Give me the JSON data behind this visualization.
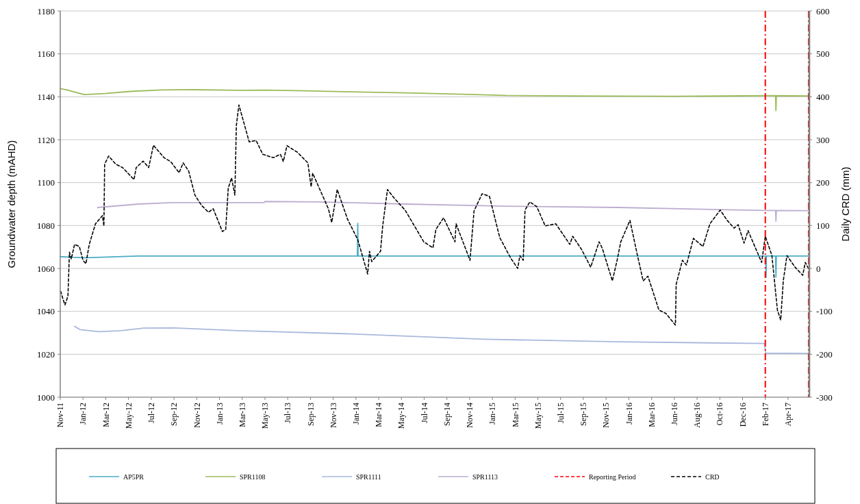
{
  "chart_data": {
    "type": "line",
    "ylabel": "Groundwater depth (mAHD)",
    "y2label": "Daily CRD (mm)",
    "xlim": [
      "2011-11-01",
      "2017-06-04"
    ],
    "xticks": [
      {
        "value": "2011-11-01",
        "label": "Nov-11"
      },
      {
        "value": "2012-01-02",
        "label": "Jan-12"
      },
      {
        "value": "2012-03-04",
        "label": "Mar-12"
      },
      {
        "value": "2012-05-05",
        "label": "May-12"
      },
      {
        "value": "2012-07-06",
        "label": "Jul-12"
      },
      {
        "value": "2012-09-06",
        "label": "Sep-12"
      },
      {
        "value": "2012-11-07",
        "label": "Nov-12"
      },
      {
        "value": "2013-01-08",
        "label": "Jan-13"
      },
      {
        "value": "2013-03-11",
        "label": "Mar-13"
      },
      {
        "value": "2013-05-12",
        "label": "May-13"
      },
      {
        "value": "2013-07-13",
        "label": "Jul-13"
      },
      {
        "value": "2013-09-13",
        "label": "Sep-13"
      },
      {
        "value": "2013-11-14",
        "label": "Nov-13"
      },
      {
        "value": "2014-01-15",
        "label": "Jan-14"
      },
      {
        "value": "2014-03-18",
        "label": "Mar-14"
      },
      {
        "value": "2014-05-19",
        "label": "May-14"
      },
      {
        "value": "2014-07-20",
        "label": "Jul-14"
      },
      {
        "value": "2014-09-20",
        "label": "Sep-14"
      },
      {
        "value": "2014-11-21",
        "label": "Nov-14"
      },
      {
        "value": "2015-01-22",
        "label": "Jan-15"
      },
      {
        "value": "2015-03-25",
        "label": "Mar-15"
      },
      {
        "value": "2015-05-26",
        "label": "May-15"
      },
      {
        "value": "2015-07-27",
        "label": "Jul-15"
      },
      {
        "value": "2015-09-27",
        "label": "Sep-15"
      },
      {
        "value": "2015-11-28",
        "label": "Nov-15"
      },
      {
        "value": "2016-01-29",
        "label": "Jan-16"
      },
      {
        "value": "2016-03-31",
        "label": "Mar-16"
      },
      {
        "value": "2016-06-01",
        "label": "Jun-16"
      },
      {
        "value": "2016-08-02",
        "label": "Aug-16"
      },
      {
        "value": "2016-10-03",
        "label": "Oct-16"
      },
      {
        "value": "2016-12-04",
        "label": "Dec-16"
      },
      {
        "value": "2017-02-04",
        "label": "Feb-17"
      },
      {
        "value": "2017-04-07",
        "label": "Apr-17"
      }
    ],
    "ylim": [
      1000,
      1180
    ],
    "yticks": [
      1000,
      1020,
      1040,
      1060,
      1080,
      1100,
      1120,
      1140,
      1160,
      1180
    ],
    "y2lim": [
      -300,
      600
    ],
    "y2ticks": [
      -300,
      -200,
      -100,
      0,
      100,
      200,
      300,
      400,
      500,
      600
    ],
    "grid": "y",
    "legend": "bottom",
    "line_style": "solid",
    "ref_lines": [
      {
        "axis": "x",
        "value": "2017-02-04",
        "label": "Reporting Period",
        "color": "#ff0000",
        "line_style": "dashed"
      },
      {
        "axis": "x",
        "value": "2017-06-02",
        "color": "#ff0000",
        "line_style": "dashed"
      }
    ],
    "series": [
      {
        "name": "AP5PR",
        "color": "#4bacc6",
        "x": [
          "2011-11-01",
          "2011-12-01",
          "2012-01-10",
          "2012-06-01",
          "2014-01-19",
          "2014-01-20",
          "2014-01-21",
          "2017-02-05",
          "2017-02-06",
          "2017-02-07",
          "2017-03-04",
          "2017-03-05",
          "2017-03-06",
          "2017-06-03"
        ],
        "values": [
          1065.5,
          1065.2,
          1065,
          1065.8,
          1065.8,
          1081,
          1065.8,
          1065.8,
          1056,
          1065.8,
          1065.8,
          1056,
          1065.8,
          1065.8
        ]
      },
      {
        "name": "SPR1108",
        "color": "#9bbb59",
        "x": [
          "2011-11-01",
          "2011-11-20",
          "2011-12-15",
          "2012-01-05",
          "2012-03-01",
          "2012-05-10",
          "2012-08-01",
          "2012-11-01",
          "2013-03-01",
          "2013-05-15",
          "2013-09-01",
          "2014-01-01",
          "2014-06-01",
          "2014-11-01",
          "2015-03-01",
          "2015-09-01",
          "2016-06-01",
          "2017-02-01",
          "2017-03-04",
          "2017-03-05",
          "2017-03-06",
          "2017-06-03"
        ],
        "values": [
          1143.8,
          1143.2,
          1142,
          1141,
          1141.5,
          1142.5,
          1143.2,
          1143.3,
          1143,
          1143.1,
          1142.8,
          1142.3,
          1141.8,
          1141.2,
          1140.6,
          1140.4,
          1140.2,
          1140.5,
          1140.5,
          1133.6,
          1140.5,
          1140.4
        ]
      },
      {
        "name": "SPR1111",
        "color": "#a9b9dc",
        "x": [
          "2011-12-10",
          "2011-12-25",
          "2012-02-15",
          "2012-04-15",
          "2012-06-15",
          "2012-09-01",
          "2013-03-01",
          "2014-01-01",
          "2015-01-01",
          "2016-01-01",
          "2017-02-02",
          "2017-02-05",
          "2017-06-03"
        ],
        "values": [
          1033,
          1031.5,
          1030.5,
          1031,
          1032.2,
          1032.3,
          1031,
          1029.5,
          1027,
          1025.8,
          1025,
          1020.5,
          1020.4
        ]
      },
      {
        "name": "SPR1113",
        "color": "#bcaed0",
        "x": [
          "2012-02-11",
          "2012-06-01",
          "2012-09-01",
          "2013-05-10",
          "2013-05-12",
          "2013-10-01",
          "2014-06-01",
          "2015-03-01",
          "2016-01-01",
          "2017-02-01",
          "2017-03-04",
          "2017-03-05",
          "2017-03-06",
          "2017-06-03"
        ],
        "values": [
          1088.4,
          1090,
          1090.7,
          1090.7,
          1091.2,
          1091,
          1090,
          1089,
          1088.4,
          1087,
          1087,
          1082,
          1087,
          1086.9
        ]
      },
      {
        "name": "CRD",
        "color": "#000000",
        "axis": "y2",
        "line_style": "dashed",
        "x": [
          "2011-11-02",
          "2011-11-09",
          "2011-11-14",
          "2011-11-22",
          "2011-11-26",
          "2011-12-01",
          "2011-12-10",
          "2011-12-23",
          "2012-01-02",
          "2012-01-10",
          "2012-01-19",
          "2012-02-05",
          "2012-02-24",
          "2012-02-28",
          "2012-03-01",
          "2012-03-12",
          "2012-03-31",
          "2012-04-19",
          "2012-05-20",
          "2012-05-26",
          "2012-06-14",
          "2012-06-29",
          "2012-07-12",
          "2012-08-10",
          "2012-08-28",
          "2012-09-20",
          "2012-10-01",
          "2012-10-16",
          "2012-11-02",
          "2012-11-20",
          "2012-12-09",
          "2012-12-22",
          "2013-01-16",
          "2013-01-25",
          "2013-02-01",
          "2013-02-10",
          "2013-02-19",
          "2013-02-23",
          "2013-03-02",
          "2013-03-30",
          "2013-04-18",
          "2013-05-06",
          "2013-06-04",
          "2013-06-23",
          "2013-07-01",
          "2013-07-11",
          "2013-08-08",
          "2013-09-06",
          "2013-09-15",
          "2013-09-19",
          "2013-11-01",
          "2013-11-10",
          "2013-11-25",
          "2013-12-23",
          "2014-01-20",
          "2014-02-16",
          "2014-02-21",
          "2014-02-27",
          "2014-03-23",
          "2014-03-29",
          "2014-04-11",
          "2014-04-30",
          "2014-05-29",
          "2014-07-19",
          "2014-08-13",
          "2014-08-21",
          "2014-09-11",
          "2014-10-12",
          "2014-10-15",
          "2014-11-22",
          "2014-12-03",
          "2014-12-25",
          "2015-01-14",
          "2015-02-11",
          "2015-03-13",
          "2015-04-01",
          "2015-04-07",
          "2015-04-16",
          "2015-04-21",
          "2015-05-04",
          "2015-05-23",
          "2015-06-15",
          "2015-07-14",
          "2015-08-21",
          "2015-08-29",
          "2015-09-23",
          "2015-10-17",
          "2015-11-09",
          "2015-11-18",
          "2015-12-15",
          "2015-12-28",
          "2016-01-07",
          "2016-02-01",
          "2016-02-19",
          "2016-03-08",
          "2016-03-21",
          "2016-04-20",
          "2016-05-09",
          "2016-06-04",
          "2016-06-06",
          "2016-06-23",
          "2016-07-04",
          "2016-07-23",
          "2016-08-18",
          "2016-09-06",
          "2016-10-04",
          "2016-10-23",
          "2016-11-11",
          "2016-11-22",
          "2016-12-08",
          "2016-12-19",
          "2017-01-25",
          "2017-02-04",
          "2017-02-22",
          "2017-03-09",
          "2017-03-18",
          "2017-03-25",
          "2017-04-04",
          "2017-04-26",
          "2017-05-17",
          "2017-05-24",
          "2017-06-03"
        ],
        "values": [
          -53,
          -73,
          -85,
          -64,
          38,
          22,
          56,
          51,
          19,
          11,
          56,
          104,
          123,
          99,
          243,
          262,
          243,
          235,
          207,
          235,
          250,
          235,
          287,
          258,
          249,
          223,
          246,
          227,
          171,
          147,
          131,
          139,
          86,
          91,
          187,
          211,
          171,
          333,
          381,
          295,
          298,
          266,
          258,
          266,
          249,
          286,
          271,
          246,
          190,
          222,
          139,
          107,
          184,
          115,
          67,
          -13,
          40,
          16,
          40,
          99,
          184,
          163,
          136,
          62,
          48,
          91,
          118,
          62,
          104,
          19,
          134,
          174,
          168,
          72,
          24,
          0,
          30,
          19,
          136,
          155,
          144,
          99,
          104,
          56,
          75,
          43,
          3,
          62,
          46,
          -29,
          19,
          62,
          112,
          40,
          -29,
          -18,
          -97,
          -105,
          -132,
          -37,
          19,
          8,
          70,
          51,
          104,
          136,
          112,
          94,
          102,
          59,
          88,
          14,
          75,
          30,
          -97,
          -120,
          -29,
          30,
          3,
          -16,
          14,
          -2
        ]
      }
    ]
  }
}
